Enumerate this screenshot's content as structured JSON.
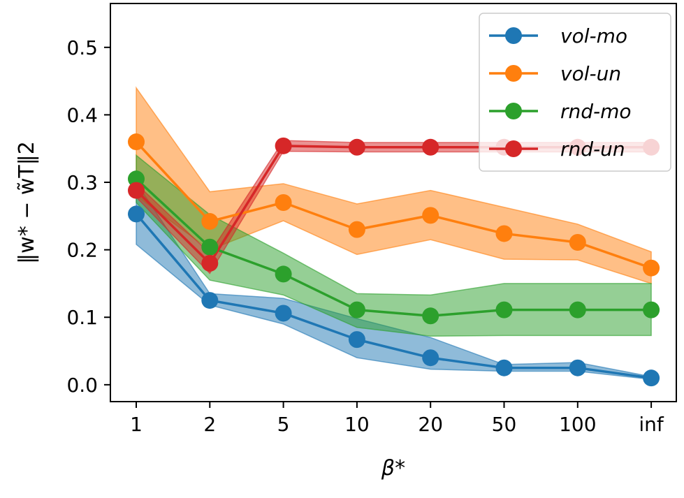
{
  "chart_data": {
    "type": "line",
    "title": "",
    "xlabel": "β*",
    "ylabel": "‖w* − w̃T‖2",
    "categories": [
      "1",
      "2",
      "5",
      "10",
      "20",
      "50",
      "100",
      "inf"
    ],
    "ylim": [
      -0.025,
      0.565
    ],
    "yticks": [
      0.0,
      0.1,
      0.2,
      0.3,
      0.4,
      0.5
    ],
    "ytick_labels": [
      "0.0",
      "0.1",
      "0.2",
      "0.3",
      "0.4",
      "0.5"
    ],
    "grid": false,
    "legend_position": "top-right",
    "series": [
      {
        "name": "vol-mo",
        "color": "#1f77b4",
        "values": [
          0.253,
          0.125,
          0.106,
          0.067,
          0.04,
          0.025,
          0.025,
          0.01
        ],
        "lower": [
          0.208,
          0.118,
          0.09,
          0.04,
          0.023,
          0.02,
          0.02,
          0.008
        ],
        "upper": [
          0.3,
          0.135,
          0.128,
          0.098,
          0.07,
          0.03,
          0.033,
          0.012
        ]
      },
      {
        "name": "vol-un",
        "color": "#ff7f0e",
        "values": [
          0.36,
          0.242,
          0.27,
          0.23,
          0.251,
          0.224,
          0.211,
          0.173
        ],
        "lower": [
          0.28,
          0.2,
          0.243,
          0.193,
          0.215,
          0.186,
          0.185,
          0.15
        ],
        "upper": [
          0.44,
          0.286,
          0.298,
          0.268,
          0.288,
          0.263,
          0.238,
          0.197
        ]
      },
      {
        "name": "rnd-mo",
        "color": "#2ca02c",
        "values": [
          0.305,
          0.204,
          0.164,
          0.111,
          0.102,
          0.111,
          0.111,
          0.111
        ],
        "lower": [
          0.27,
          0.155,
          0.133,
          0.085,
          0.072,
          0.073,
          0.073,
          0.073
        ],
        "upper": [
          0.34,
          0.252,
          0.195,
          0.135,
          0.133,
          0.15,
          0.15,
          0.15
        ]
      },
      {
        "name": "rnd-un",
        "color": "#d62728",
        "values": [
          0.288,
          0.18,
          0.354,
          0.352,
          0.352,
          0.352,
          0.352,
          0.352
        ],
        "lower": [
          0.278,
          0.165,
          0.346,
          0.345,
          0.345,
          0.345,
          0.345,
          0.345
        ],
        "upper": [
          0.298,
          0.195,
          0.362,
          0.359,
          0.359,
          0.359,
          0.359,
          0.359
        ]
      }
    ]
  }
}
